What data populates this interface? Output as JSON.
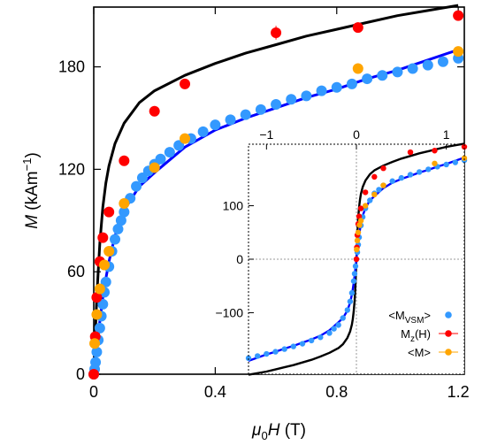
{
  "chart_data": {
    "type": "scatter",
    "main": {
      "xlabel": "μ0H (T)",
      "ylabel": "M (kAm⁻¹)",
      "xlim": [
        0,
        1.22
      ],
      "ylim": [
        0,
        215
      ],
      "xticks": [
        "0",
        "0.4",
        "0.8",
        "1.2"
      ],
      "xtick_values": [
        0,
        0.4,
        0.8,
        1.2
      ],
      "yticks": [
        "0",
        "60",
        "120",
        "180"
      ],
      "ytick_values": [
        0,
        60,
        120,
        180
      ],
      "series": [
        {
          "name": "<M_VSM>",
          "color": "#3399ff",
          "kind": "points",
          "x": [
            0.0,
            0.003,
            0.006,
            0.01,
            0.015,
            0.02,
            0.025,
            0.03,
            0.035,
            0.04,
            0.05,
            0.06,
            0.07,
            0.08,
            0.09,
            0.1,
            0.12,
            0.14,
            0.16,
            0.18,
            0.2,
            0.22,
            0.25,
            0.28,
            0.32,
            0.36,
            0.4,
            0.45,
            0.5,
            0.55,
            0.6,
            0.65,
            0.7,
            0.75,
            0.8,
            0.85,
            0.9,
            0.95,
            1.0,
            1.05,
            1.1,
            1.15,
            1.2
          ],
          "y": [
            0,
            3,
            7,
            13,
            20,
            27,
            34,
            41,
            48,
            54,
            63,
            72,
            79,
            85,
            90,
            95,
            103,
            110,
            115,
            119,
            123,
            126,
            130,
            134,
            138,
            142,
            146,
            149,
            152,
            155,
            158,
            161,
            163,
            166,
            168,
            170,
            173,
            175,
            177,
            179,
            181,
            183,
            185
          ]
        },
        {
          "name": "M_z(H)",
          "color": "#ff0000",
          "kind": "points-errorbars",
          "x": [
            0.0,
            0.005,
            0.01,
            0.02,
            0.03,
            0.05,
            0.1,
            0.2,
            0.3,
            0.6,
            0.87,
            1.2
          ],
          "y": [
            0,
            22,
            45,
            66,
            80,
            95,
            125,
            154,
            170,
            200,
            203,
            210
          ],
          "err": [
            2,
            2,
            2,
            2,
            2,
            2,
            3,
            3,
            3,
            4,
            3,
            3
          ]
        },
        {
          "name": "<M>",
          "color": "#ffa500",
          "kind": "points-errorbars",
          "x": [
            0.003,
            0.01,
            0.02,
            0.035,
            0.05,
            0.1,
            0.2,
            0.3,
            0.87,
            1.2
          ],
          "y": [
            18,
            35,
            50,
            64,
            72,
            100,
            121,
            138,
            179,
            189
          ],
          "err": [
            1,
            1,
            1,
            1,
            1,
            1,
            1,
            1,
            1,
            1
          ]
        },
        {
          "kind": "line",
          "color": "#000000",
          "x": [
            0,
            0.005,
            0.01,
            0.02,
            0.03,
            0.04,
            0.05,
            0.07,
            0.1,
            0.15,
            0.2,
            0.3,
            0.4,
            0.5,
            0.6,
            0.7,
            0.8,
            0.9,
            1.0,
            1.1,
            1.2
          ],
          "y": [
            0,
            22,
            45,
            77,
            98,
            112,
            122,
            135,
            147,
            159,
            166,
            175,
            182,
            188,
            193,
            198,
            202,
            206,
            210,
            213,
            216
          ]
        },
        {
          "kind": "line",
          "color": "#0000ff",
          "x": [
            0,
            0.005,
            0.01,
            0.02,
            0.03,
            0.04,
            0.05,
            0.07,
            0.1,
            0.15,
            0.2,
            0.3,
            0.4,
            0.5,
            0.6,
            0.7,
            0.8,
            0.9,
            1.0,
            1.1,
            1.2
          ],
          "y": [
            0,
            8,
            16,
            31,
            45,
            56,
            66,
            81,
            96,
            110,
            118,
            133,
            143,
            150,
            156,
            162,
            167,
            173,
            178,
            184,
            190
          ]
        }
      ]
    },
    "inset": {
      "xlim": [
        -1.2,
        1.2
      ],
      "ylim": [
        -215,
        215
      ],
      "xticks": [
        "−1",
        "0",
        "1"
      ],
      "xtick_values": [
        -1,
        0,
        1
      ],
      "yticks": [
        "−100",
        "0",
        "100"
      ],
      "ytick_values": [
        -100,
        0,
        100
      ],
      "series": [
        {
          "name": "<M_VSM>",
          "color": "#3399ff",
          "kind": "points",
          "x": [
            -1.2,
            -1.1,
            -1.0,
            -0.9,
            -0.8,
            -0.7,
            -0.6,
            -0.5,
            -0.4,
            -0.3,
            -0.25,
            -0.2,
            -0.15,
            -0.1,
            -0.07,
            -0.05,
            -0.03,
            -0.02,
            -0.01,
            0.0,
            0.01,
            0.02,
            0.03,
            0.05,
            0.07,
            0.1,
            0.15,
            0.2,
            0.25,
            0.3,
            0.4,
            0.5,
            0.6,
            0.7,
            0.8,
            0.9,
            1.0,
            1.1,
            1.2
          ],
          "y": [
            -185,
            -181,
            -177,
            -173,
            -168,
            -163,
            -158,
            -152,
            -146,
            -138,
            -130,
            -123,
            -110,
            -95,
            -79,
            -63,
            -41,
            -27,
            -13,
            0,
            13,
            27,
            41,
            63,
            79,
            95,
            110,
            123,
            130,
            138,
            146,
            152,
            158,
            163,
            168,
            173,
            177,
            181,
            185
          ]
        },
        {
          "name": "M_z(H)",
          "color": "#ff0000",
          "kind": "points-errorbars",
          "x": [
            0.0,
            0.005,
            0.01,
            0.02,
            0.03,
            0.05,
            0.1,
            0.2,
            0.3,
            0.6,
            0.87,
            1.2
          ],
          "y": [
            0,
            22,
            45,
            66,
            80,
            95,
            125,
            154,
            170,
            200,
            203,
            210
          ],
          "err": [
            2,
            2,
            2,
            2,
            2,
            2,
            3,
            3,
            3,
            4,
            3,
            3
          ]
        },
        {
          "name": "<M>",
          "color": "#ffa500",
          "kind": "points-errorbars",
          "x": [
            0.003,
            0.01,
            0.02,
            0.035,
            0.05,
            0.1,
            0.2,
            0.3,
            0.87,
            1.2
          ],
          "y": [
            18,
            35,
            50,
            64,
            72,
            100,
            121,
            138,
            179,
            189
          ],
          "err": [
            1,
            1,
            1,
            1,
            1,
            1,
            1,
            1,
            1,
            1
          ]
        },
        {
          "kind": "line",
          "color": "#000000",
          "x": [
            -1.2,
            -1.1,
            -1.0,
            -0.9,
            -0.8,
            -0.7,
            -0.6,
            -0.5,
            -0.4,
            -0.3,
            -0.2,
            -0.15,
            -0.1,
            -0.07,
            -0.05,
            -0.04,
            -0.03,
            -0.02,
            -0.01,
            -0.005,
            0,
            0.005,
            0.01,
            0.02,
            0.03,
            0.04,
            0.05,
            0.07,
            0.1,
            0.15,
            0.2,
            0.3,
            0.4,
            0.5,
            0.6,
            0.7,
            0.8,
            0.9,
            1.0,
            1.1,
            1.2
          ],
          "y": [
            -216,
            -213,
            -210,
            -206,
            -202,
            -198,
            -193,
            -188,
            -182,
            -175,
            -166,
            -159,
            -147,
            -135,
            -122,
            -112,
            -98,
            -77,
            -45,
            -22,
            0,
            22,
            45,
            77,
            98,
            112,
            122,
            135,
            147,
            159,
            166,
            175,
            182,
            188,
            193,
            198,
            202,
            206,
            210,
            213,
            216
          ]
        },
        {
          "kind": "line",
          "color": "#0000ff",
          "x": [
            -1.2,
            -1.1,
            -1.0,
            -0.9,
            -0.8,
            -0.7,
            -0.6,
            -0.5,
            -0.4,
            -0.3,
            -0.2,
            -0.15,
            -0.1,
            -0.07,
            -0.05,
            -0.04,
            -0.03,
            -0.02,
            -0.01,
            -0.005,
            0,
            0.005,
            0.01,
            0.02,
            0.03,
            0.04,
            0.05,
            0.07,
            0.1,
            0.15,
            0.2,
            0.3,
            0.4,
            0.5,
            0.6,
            0.7,
            0.8,
            0.9,
            1.0,
            1.1,
            1.2
          ],
          "y": [
            -190,
            -184,
            -178,
            -173,
            -167,
            -162,
            -156,
            -150,
            -143,
            -133,
            -118,
            -110,
            -96,
            -81,
            -66,
            -56,
            -45,
            -31,
            -16,
            -8,
            0,
            8,
            16,
            31,
            45,
            56,
            66,
            81,
            96,
            110,
            118,
            133,
            143,
            150,
            156,
            162,
            167,
            173,
            178,
            184,
            190
          ]
        }
      ]
    },
    "legend": {
      "position": "inset-bottom-right",
      "entries": [
        {
          "text": "<M",
          "sub": "VSM",
          "tail": ">",
          "color": "#3399ff"
        },
        {
          "text": "M",
          "sub": "z",
          "tail": "(H)",
          "color": "#ff0000"
        },
        {
          "text": "<M>",
          "sub": "",
          "tail": "",
          "color": "#ffa500"
        }
      ]
    }
  }
}
